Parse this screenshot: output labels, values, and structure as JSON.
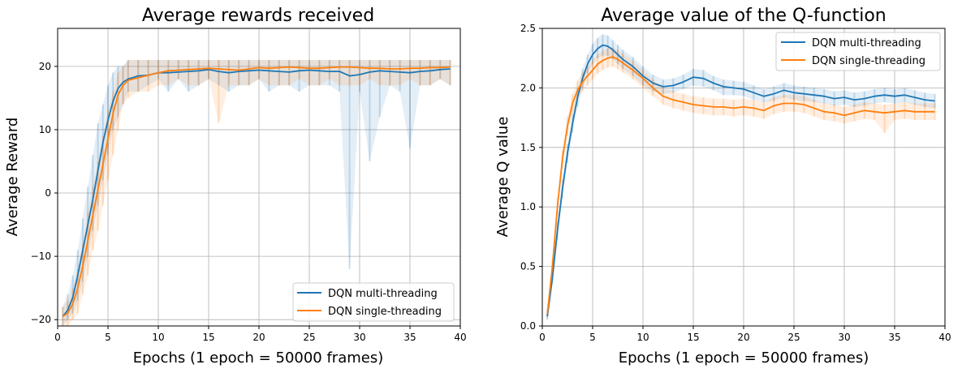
{
  "chart_data": [
    {
      "type": "line",
      "title": "Average rewards received",
      "xlabel": "Epochs (1 epoch = 50000 frames)",
      "ylabel": "Average Reward",
      "xlim": [
        0,
        40
      ],
      "ylim": [
        -21,
        26
      ],
      "xticks": [
        0,
        5,
        10,
        15,
        20,
        25,
        30,
        35,
        40
      ],
      "xtick_labels": [
        "0",
        "5",
        "10",
        "15",
        "20",
        "25",
        "30",
        "35",
        "40"
      ],
      "yticks": [
        -20,
        -10,
        0,
        10,
        20
      ],
      "ytick_labels": [
        "−20",
        "−10",
        "0",
        "10",
        "20"
      ],
      "grid": true,
      "legend_position": "lower-right",
      "series": [
        {
          "name": "DQN multi-threading",
          "color": "#1f77b4",
          "x": [
            0.5,
            1,
            1.5,
            2,
            2.5,
            3,
            3.5,
            4,
            4.5,
            5,
            5.5,
            6,
            6.5,
            7,
            8,
            9,
            10,
            11,
            12,
            13,
            14,
            15,
            16,
            17,
            18,
            19,
            20,
            21,
            22,
            23,
            24,
            25,
            26,
            27,
            28,
            29,
            30,
            31,
            32,
            33,
            34,
            35,
            36,
            37,
            38,
            39
          ],
          "y": [
            -19.5,
            -18.5,
            -16.5,
            -13,
            -9,
            -5,
            -1,
            3.5,
            8,
            11.5,
            14.5,
            16.5,
            17.5,
            18,
            18.5,
            18.6,
            19,
            19,
            19.1,
            19.2,
            19.3,
            19.5,
            19.2,
            19,
            19.2,
            19.3,
            19.4,
            19.3,
            19.2,
            19.1,
            19.3,
            19.4,
            19.3,
            19.2,
            19.2,
            18.5,
            18.7,
            19.1,
            19.3,
            19.2,
            19.1,
            19,
            19.2,
            19.3,
            19.5,
            19.6
          ],
          "raw_min": [
            -21,
            -20,
            -19,
            -17,
            -14,
            -10,
            -6,
            -2,
            2,
            6,
            10,
            12,
            14,
            16,
            16,
            17,
            18,
            16,
            18,
            16,
            17,
            18,
            17,
            16,
            17,
            17,
            18,
            16,
            17,
            17,
            16,
            17,
            17,
            17,
            16,
            -12,
            16,
            5,
            12,
            17,
            16,
            7,
            17,
            17,
            18,
            17
          ],
          "raw_max": [
            -18,
            -16,
            -13,
            -9,
            -4,
            1,
            6,
            11,
            14,
            17,
            19,
            20,
            20,
            21,
            21,
            21,
            21,
            21,
            21,
            21,
            21,
            21,
            21,
            21,
            21,
            21,
            21,
            21,
            21,
            21,
            21,
            21,
            21,
            21,
            21,
            21,
            21,
            21,
            21,
            21,
            21,
            21,
            21,
            21,
            21,
            21
          ]
        },
        {
          "name": "DQN single-threading",
          "color": "#ff7f0e",
          "x": [
            0.5,
            1,
            1.5,
            2,
            2.5,
            3,
            3.5,
            4,
            4.5,
            5,
            5.5,
            6,
            6.5,
            7,
            8,
            9,
            10,
            11,
            12,
            13,
            14,
            15,
            16,
            17,
            18,
            19,
            20,
            21,
            22,
            23,
            24,
            25,
            26,
            27,
            28,
            29,
            30,
            31,
            32,
            33,
            34,
            35,
            36,
            37,
            38,
            39
          ],
          "y": [
            -19.5,
            -19,
            -17.5,
            -15,
            -11.5,
            -7.5,
            -3.5,
            0.5,
            4.5,
            8.5,
            12.5,
            15.5,
            17,
            17.8,
            18.2,
            18.6,
            19,
            19.3,
            19.4,
            19.5,
            19.6,
            19.7,
            19.6,
            19.5,
            19.4,
            19.6,
            19.8,
            19.7,
            19.8,
            19.9,
            19.8,
            19.7,
            19.7,
            19.8,
            19.9,
            19.9,
            19.8,
            19.7,
            19.7,
            19.6,
            19.6,
            19.7,
            19.7,
            19.8,
            19.8,
            19.9
          ],
          "raw_min": [
            -21,
            -21,
            -20,
            -19,
            -16,
            -13,
            -9,
            -6,
            -2,
            2,
            6,
            10,
            14,
            15,
            16,
            16,
            17,
            17,
            18,
            17,
            17,
            18,
            11,
            17,
            17,
            17,
            18,
            17,
            17,
            17,
            18,
            17,
            17,
            18,
            17,
            17,
            17,
            18,
            17,
            17,
            17,
            18,
            17,
            17,
            18,
            17
          ],
          "raw_max": [
            -18,
            -17,
            -15,
            -12,
            -8,
            -3,
            1,
            5,
            9,
            13,
            16,
            19,
            20,
            21,
            21,
            21,
            21,
            21,
            21,
            21,
            21,
            21,
            21,
            21,
            21,
            21,
            21,
            21,
            21,
            21,
            21,
            21,
            21,
            21,
            21,
            21,
            21,
            21,
            21,
            21,
            21,
            21,
            21,
            21,
            21,
            21
          ]
        }
      ]
    },
    {
      "type": "line",
      "title": "Average value of the Q-function",
      "xlabel": "Epochs (1 epoch = 50000 frames)",
      "ylabel": "Average Q value",
      "xlim": [
        0,
        40
      ],
      "ylim": [
        0,
        2.5
      ],
      "xticks": [
        0,
        5,
        10,
        15,
        20,
        25,
        30,
        35,
        40
      ],
      "xtick_labels": [
        "0",
        "5",
        "10",
        "15",
        "20",
        "25",
        "30",
        "35",
        "40"
      ],
      "yticks": [
        0,
        0.5,
        1,
        1.5,
        2,
        2.5
      ],
      "ytick_labels": [
        "0.0",
        "0.5",
        "1.0",
        "1.5",
        "2.0",
        "2.5"
      ],
      "grid": true,
      "legend_position": "top-right",
      "series": [
        {
          "name": "DQN multi-threading",
          "color": "#1f77b4",
          "x": [
            0.5,
            1,
            1.5,
            2,
            2.5,
            3,
            3.5,
            4,
            4.5,
            5,
            5.5,
            6,
            6.5,
            7,
            7.5,
            8,
            9,
            10,
            11,
            12,
            13,
            14,
            15,
            16,
            17,
            18,
            19,
            20,
            21,
            22,
            23,
            24,
            25,
            26,
            27,
            28,
            29,
            30,
            31,
            32,
            33,
            34,
            35,
            36,
            37,
            38,
            39
          ],
          "y": [
            0.08,
            0.4,
            0.8,
            1.15,
            1.45,
            1.7,
            1.92,
            2.08,
            2.2,
            2.28,
            2.33,
            2.36,
            2.35,
            2.32,
            2.28,
            2.24,
            2.18,
            2.1,
            2.04,
            2.01,
            2.02,
            2.05,
            2.09,
            2.08,
            2.04,
            2.01,
            2.0,
            1.99,
            1.96,
            1.93,
            1.95,
            1.98,
            1.96,
            1.95,
            1.94,
            1.93,
            1.91,
            1.92,
            1.9,
            1.91,
            1.93,
            1.94,
            1.93,
            1.94,
            1.92,
            1.9,
            1.89
          ],
          "raw_min": [
            0.05,
            0.35,
            0.72,
            1.07,
            1.37,
            1.62,
            1.84,
            2.0,
            2.12,
            2.2,
            2.25,
            2.27,
            2.27,
            2.24,
            2.2,
            2.16,
            2.1,
            2.02,
            1.97,
            1.95,
            1.96,
            1.99,
            2.02,
            2.01,
            1.98,
            1.94,
            1.94,
            1.93,
            1.9,
            1.88,
            1.89,
            1.92,
            1.9,
            1.89,
            1.88,
            1.87,
            1.85,
            1.86,
            1.84,
            1.85,
            1.87,
            1.88,
            1.87,
            1.88,
            1.86,
            1.84,
            1.83
          ],
          "raw_max": [
            0.12,
            0.46,
            0.88,
            1.23,
            1.53,
            1.78,
            2.0,
            2.16,
            2.28,
            2.37,
            2.42,
            2.45,
            2.44,
            2.4,
            2.36,
            2.32,
            2.26,
            2.18,
            2.11,
            2.07,
            2.08,
            2.11,
            2.16,
            2.15,
            2.1,
            2.07,
            2.06,
            2.05,
            2.02,
            1.99,
            2.01,
            2.04,
            2.02,
            2.01,
            2.0,
            1.99,
            1.97,
            1.98,
            1.96,
            1.97,
            1.99,
            2.0,
            1.99,
            2.0,
            1.98,
            1.96,
            1.95
          ]
        },
        {
          "name": "DQN single-threading",
          "color": "#ff7f0e",
          "x": [
            0.5,
            1,
            1.5,
            2,
            2.5,
            3,
            3.5,
            4,
            4.5,
            5,
            5.5,
            6,
            6.5,
            7,
            7.5,
            8,
            9,
            10,
            11,
            12,
            13,
            14,
            15,
            16,
            17,
            18,
            19,
            20,
            21,
            22,
            23,
            24,
            25,
            26,
            27,
            28,
            29,
            30,
            31,
            32,
            33,
            34,
            35,
            36,
            37,
            38,
            39
          ],
          "y": [
            0.1,
            0.5,
            1.0,
            1.4,
            1.68,
            1.87,
            1.98,
            2.05,
            2.1,
            2.15,
            2.2,
            2.23,
            2.25,
            2.26,
            2.24,
            2.21,
            2.15,
            2.08,
            2.0,
            1.93,
            1.9,
            1.88,
            1.86,
            1.85,
            1.84,
            1.84,
            1.83,
            1.84,
            1.83,
            1.81,
            1.85,
            1.87,
            1.87,
            1.86,
            1.83,
            1.8,
            1.79,
            1.77,
            1.79,
            1.81,
            1.8,
            1.79,
            1.8,
            1.81,
            1.8,
            1.8,
            1.8
          ],
          "raw_min": [
            0.06,
            0.44,
            0.92,
            1.32,
            1.6,
            1.79,
            1.9,
            1.97,
            2.02,
            2.07,
            2.12,
            2.15,
            2.17,
            2.18,
            2.16,
            2.13,
            2.07,
            2.0,
            1.93,
            1.86,
            1.83,
            1.81,
            1.79,
            1.78,
            1.77,
            1.77,
            1.76,
            1.77,
            1.76,
            1.74,
            1.78,
            1.8,
            1.8,
            1.79,
            1.76,
            1.73,
            1.72,
            1.7,
            1.72,
            1.74,
            1.73,
            1.62,
            1.73,
            1.74,
            1.73,
            1.73,
            1.73
          ],
          "raw_max": [
            0.14,
            0.56,
            1.08,
            1.48,
            1.76,
            1.95,
            2.06,
            2.13,
            2.18,
            2.23,
            2.28,
            2.31,
            2.33,
            2.34,
            2.32,
            2.29,
            2.23,
            2.15,
            2.07,
            2.0,
            1.97,
            1.95,
            1.93,
            1.92,
            1.91,
            1.91,
            1.9,
            1.91,
            1.9,
            1.88,
            1.92,
            1.94,
            1.94,
            1.93,
            1.9,
            1.87,
            1.86,
            1.84,
            1.86,
            1.88,
            1.87,
            1.86,
            1.87,
            1.88,
            1.87,
            1.87,
            1.87
          ]
        }
      ]
    }
  ]
}
